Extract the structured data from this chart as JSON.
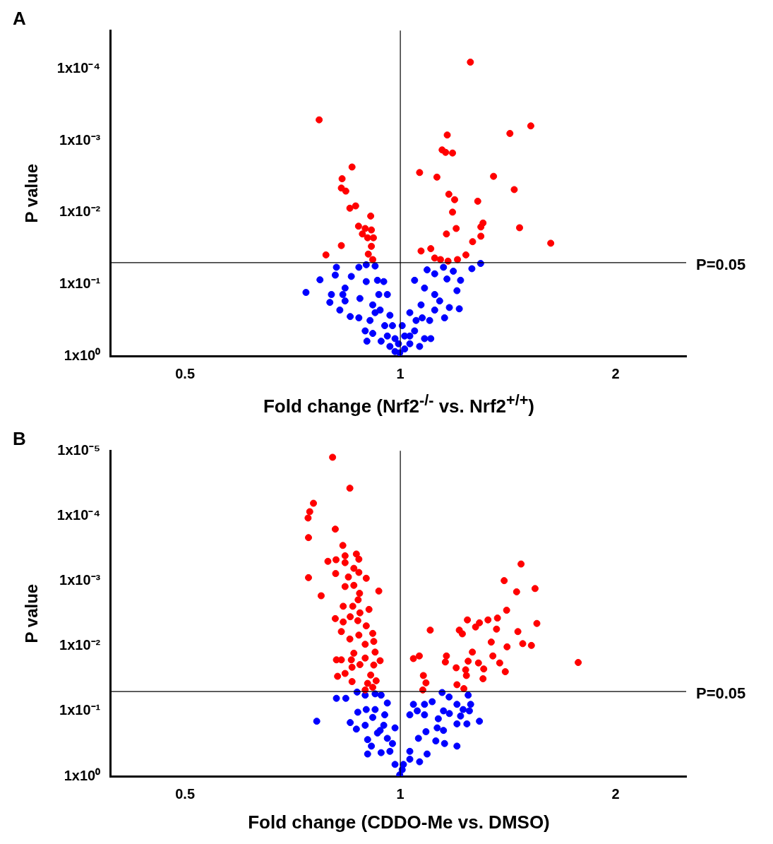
{
  "chart_data": [
    {
      "type": "scatter",
      "title": "A",
      "xlabel": "Fold change (Nrf2$^{-/-}$ vs.  Nrf2$^{+/+}$)",
      "ylabel": "P value",
      "log": "xy",
      "grid": false,
      "legend": false,
      "marker": "circle",
      "xlim": [
        0.393,
        2.51
      ],
      "xticks": [
        0.5,
        1,
        2
      ],
      "ylim": [
        1,
        2.9e-05
      ],
      "yticks": [
        {
          "value": 1,
          "label": "1x10⁰"
        },
        {
          "value": 0.1,
          "label": "1x10⁻¹"
        },
        {
          "value": 0.01,
          "label": "1x10⁻²"
        },
        {
          "value": 0.001,
          "label": "1x10⁻³"
        },
        {
          "value": 0.0001,
          "label": "1x10⁻⁴"
        }
      ],
      "ref_lines": [
        {
          "axis": "y",
          "value": 0.05,
          "label": "P=0.05"
        },
        {
          "axis": "x",
          "value": 1,
          "label": null
        }
      ],
      "series": [
        {
          "color": "#ff0000",
          "x": [
            1.253,
            0.77,
            1.163,
            1.522,
            1.423,
            1.144,
            1.157,
            1.183,
            0.856,
            1.064,
            1.125,
            1.35,
            0.829,
            0.827,
            0.839,
            1.443,
            1.169,
            1.191,
            1.283,
            0.866,
            0.85,
            1.183,
            0.909,
            1.305,
            0.874,
            0.893,
            0.911,
            1.296,
            1.197,
            0.885,
            0.917,
            0.9,
            1.296,
            1.16,
            1.468,
            0.827,
            0.911,
            1.262,
            1.623,
            1.103,
            1.069,
            0.902,
            1.235,
            0.787,
            0.915,
            1.117,
            1.138,
            1.166,
            1.202
          ],
          "values": [
            8e-05,
            0.00051,
            0.00083,
            0.00062,
            0.00079,
            0.00134,
            0.00145,
            0.00148,
            0.00232,
            0.00277,
            0.00321,
            0.00313,
            0.00338,
            0.00456,
            0.00503,
            0.00479,
            0.00556,
            0.00662,
            0.00696,
            0.00809,
            0.00871,
            0.00988,
            0.0112,
            0.014,
            0.0155,
            0.0167,
            0.0175,
            0.0159,
            0.0167,
            0.0199,
            0.0225,
            0.0225,
            0.0214,
            0.0199,
            0.0163,
            0.0289,
            0.0296,
            0.0255,
            0.0268,
            0.0319,
            0.0344,
            0.038,
            0.039,
            0.039,
            0.0453,
            0.0431,
            0.0453,
            0.0476,
            0.0453
          ]
        },
        {
          "color": "#0000ff",
          "x": [
            0.814,
            0.772,
            0.738,
            0.811,
            0.801,
            0.797,
            0.823,
            0.837,
            0.854,
            0.875,
            0.896,
            0.922,
            0.896,
            0.929,
            0.948,
            0.878,
            0.851,
            0.875,
            0.893,
            0.898,
            0.915,
            0.94,
            0.959,
            0.967,
            0.983,
            0.998,
            1.014,
            1.031,
            1.064,
            1.103,
            1.047,
            1.031,
            1.069,
            1.099,
            1.117,
            1.153,
            1.171,
            1.209,
            1.2,
            1.214,
            1.186,
            1.149,
            1.117,
            1.09,
            1.047,
            1.081,
            1.117,
            1.135,
            1.259,
            1.295,
            0.933,
            0.959,
            0.922,
            0.951,
            0.975,
            1.006,
            0.915,
            0.837,
            1.014,
            1.052,
            1.073,
            0.983,
            0.937,
            0.967,
            0.994,
            1.031,
            1.081,
            0.907,
            1.162,
            0.831
          ],
          "values": [
            0.058,
            0.0867,
            0.13,
            0.0746,
            0.139,
            0.179,
            0.229,
            0.113,
            0.0778,
            0.058,
            0.0535,
            0.0557,
            0.0918,
            0.0881,
            0.0918,
            0.158,
            0.282,
            0.294,
            0.447,
            0.622,
            0.485,
            0.622,
            0.527,
            0.736,
            0.867,
            0.905,
            0.799,
            0.676,
            0.736,
            0.573,
            0.447,
            0.249,
            0.194,
            0.32,
            0.229,
            0.294,
            0.211,
            0.22,
            0.123,
            0.0881,
            0.0658,
            0.058,
            0.0715,
            0.063,
            0.0881,
            0.113,
            0.139,
            0.171,
            0.0607,
            0.0513,
            0.139,
            0.139,
            0.249,
            0.378,
            0.378,
            0.378,
            0.194,
            0.171,
            0.527,
            0.32,
            0.294,
            0.573,
            0.229,
            0.271,
            0.676,
            0.527,
            0.573,
            0.32,
            0.0845,
            0.139
          ]
        }
      ]
    },
    {
      "type": "scatter",
      "title": "B",
      "xlabel": "Fold change (CDDO-Me vs. DMSO)",
      "ylabel": "P value",
      "log": "xy",
      "grid": false,
      "legend": false,
      "marker": "circle",
      "xlim": [
        0.393,
        2.51
      ],
      "xticks": [
        0.5,
        1,
        2
      ],
      "ylim": [
        1,
        1e-05
      ],
      "yticks": [
        {
          "value": 1,
          "label": "1x10⁰"
        },
        {
          "value": 0.1,
          "label": "1x10⁻¹"
        },
        {
          "value": 0.01,
          "label": "1x10⁻²"
        },
        {
          "value": 0.001,
          "label": "1x10⁻³"
        },
        {
          "value": 0.0001,
          "label": "1x10⁻⁴"
        },
        {
          "value": 1e-05,
          "label": "1x10⁻⁵"
        }
      ],
      "ref_lines": [
        {
          "axis": "y",
          "value": 0.05,
          "label": "P=0.05"
        },
        {
          "axis": "x",
          "value": 1,
          "label": null
        }
      ],
      "series": [
        {
          "color": "#ff0000",
          "x": [
            0.804,
            0.85,
            0.756,
            0.747,
            0.743,
            0.811,
            0.744,
            0.831,
            0.792,
            0.813,
            0.837,
            0.837,
            0.868,
            0.875,
            0.744,
            0.812,
            0.846,
            0.861,
            0.875,
            0.896,
            0.775,
            0.837,
            0.861,
            0.933,
            0.877,
            0.873,
            0.832,
            0.858,
            0.904,
            0.878,
            0.811,
            0.832,
            0.872,
            0.851,
            0.827,
            0.85,
            0.875,
            0.896,
            0.915,
            0.893,
            0.918,
            0.922,
            0.861,
            0.814,
            0.827,
            0.854,
            0.893,
            0.937,
            0.878,
            0.856,
            0.918,
            0.817,
            0.837,
            0.909,
            0.856,
            0.9,
            0.925,
            0.915,
            0.893,
            1.101,
            1.043,
            1.063,
            1.077,
            1.086,
            1.075,
            1.16,
            1.156,
            1.197,
            1.209,
            1.241,
            1.221,
            1.274,
            1.29,
            1.326,
            1.367,
            1.363,
            1.397,
            1.408,
            1.454,
            1.475,
            1.543,
            1.552,
            1.46,
            1.483,
            1.525,
            1.41,
            1.34,
            1.261,
            1.244,
            1.286,
            1.308,
            1.347,
            1.377,
            1.402,
            1.305,
            1.234,
            1.237,
            1.2,
            1.227,
            1.773
          ],
          "values": [
            1.26e-05,
            3.76e-05,
            6.41e-05,
            8.63e-05,
            0.000108,
            0.00016,
            0.000216,
            0.000285,
            0.0005,
            0.000473,
            0.000411,
            0.000524,
            0.000386,
            0.000464,
            0.00089,
            0.00077,
            0.00087,
            0.00064,
            0.00074,
            0.00091,
            0.00169,
            0.00122,
            0.00117,
            0.00143,
            0.00155,
            0.00195,
            0.00245,
            0.00245,
            0.00274,
            0.00309,
            0.00379,
            0.00427,
            0.00408,
            0.00355,
            0.006,
            0.0078,
            0.0068,
            0.0049,
            0.0064,
            0.0094,
            0.0085,
            0.0124,
            0.0129,
            0.0163,
            0.0163,
            0.0163,
            0.0153,
            0.0168,
            0.0193,
            0.0212,
            0.0196,
            0.0292,
            0.0264,
            0.0279,
            0.0352,
            0.0375,
            0.0342,
            0.0431,
            0.0473,
            0.0057,
            0.0156,
            0.0142,
            0.0284,
            0.0368,
            0.0473,
            0.0142,
            0.0176,
            0.0216,
            0.0057,
            0.00397,
            0.0065,
            0.0051,
            0.0044,
            0.00397,
            0.00372,
            0.0055,
            0.00099,
            0.00282,
            0.00147,
            0.00055,
            0.00131,
            0.0045,
            0.006,
            0.0092,
            0.0098,
            0.0103,
            0.0087,
            0.0124,
            0.0171,
            0.0182,
            0.0225,
            0.0142,
            0.0182,
            0.0248,
            0.0318,
            0.0232,
            0.0284,
            0.0393,
            0.0451,
            0.0179
          ]
        },
        {
          "color": "#0000ff",
          "x": [
            0.814,
            0.839,
            0.764,
            0.87,
            0.893,
            0.922,
            0.94,
            0.959,
            0.872,
            0.851,
            0.868,
            0.896,
            0.915,
            0.893,
            0.9,
            0.911,
            0.94,
            0.9,
            0.929,
            0.948,
            0.959,
            0.967,
            0.983,
            0.998,
            1.01,
            1.031,
            1.064,
            1.09,
            1.06,
            1.086,
            1.126,
            1.121,
            1.153,
            1.149,
            1.2,
            1.031,
            1.043,
            1.056,
            1.081,
            1.108,
            1.081,
            1.13,
            1.149,
            1.171,
            1.144,
            1.17,
            1.2,
            1.214,
            1.224,
            1.239,
            1.244,
            1.254,
            1.249,
            1.29,
            1.2,
            0.922,
            0.951,
            0.937,
            0.975,
            1.006,
            1.031,
            0.983
          ],
          "values": [
            0.0636,
            0.0636,
            0.143,
            0.051,
            0.0569,
            0.0543,
            0.0569,
            0.0751,
            0.104,
            0.15,
            0.189,
            0.0946,
            0.125,
            0.165,
            0.274,
            0.345,
            0.435,
            0.456,
            0.217,
            0.165,
            0.262,
            0.415,
            0.659,
            0.954,
            0.659,
            0.548,
            0.601,
            0.456,
            0.262,
            0.207,
            0.181,
            0.287,
            0.315,
            0.198,
            0.345,
            0.114,
            0.0787,
            0.0991,
            0.0787,
            0.0717,
            0.114,
            0.131,
            0.0991,
            0.109,
            0.0518,
            0.0607,
            0.0787,
            0.119,
            0.0946,
            0.157,
            0.0569,
            0.0787,
            0.0991,
            0.143,
            0.157,
            0.0946,
            0.114,
            0.198,
            0.315,
            0.794,
            0.415,
            0.181
          ]
        }
      ]
    }
  ]
}
